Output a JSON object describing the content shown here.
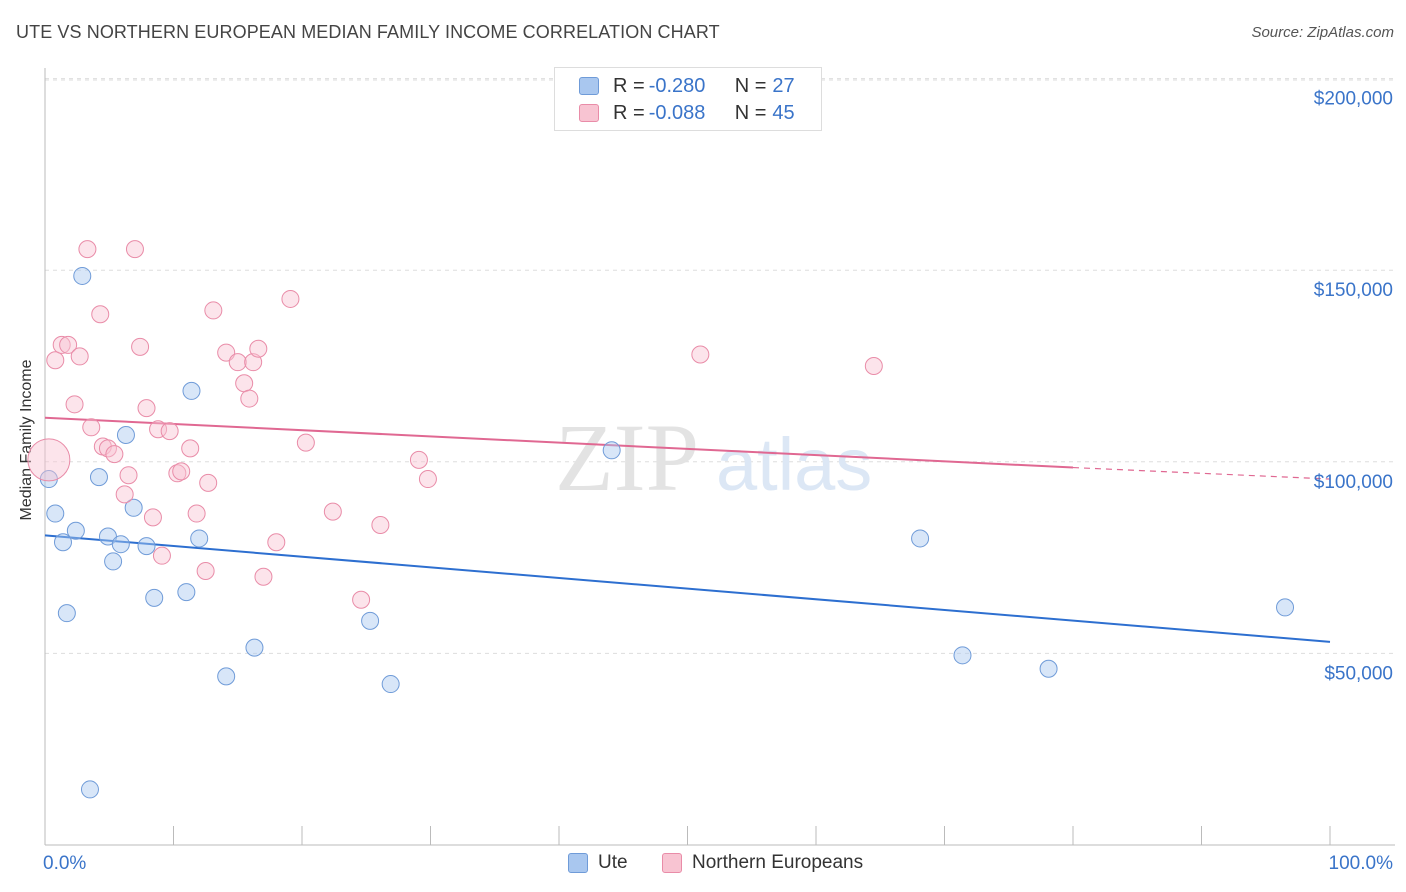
{
  "title": "UTE VS NORTHERN EUROPEAN MEDIAN FAMILY INCOME CORRELATION CHART",
  "source": "Source: ZipAtlas.com",
  "watermark": {
    "zip": "ZIP",
    "atlas": "atlas"
  },
  "legend_top": [
    {
      "series": "Ute",
      "r_key": "R =",
      "r_value": "-0.280",
      "n_key": "N =",
      "n_value": "27",
      "color": "#a9c7ef",
      "border": "#6f9bd8"
    },
    {
      "series": "Northern Europeans",
      "r_key": "R =",
      "r_value": "-0.088",
      "n_key": "N =",
      "n_value": "45",
      "color": "#f8c4d2",
      "border": "#e98ca8"
    }
  ],
  "legend_bottom": [
    {
      "label": "Ute",
      "color": "#a9c7ef",
      "border": "#6f9bd8"
    },
    {
      "label": "Northern Europeans",
      "color": "#f8c4d2",
      "border": "#e98ca8"
    }
  ],
  "colors": {
    "ute_fill": "rgba(169,199,239,0.45)",
    "ute_stroke": "#6f9bd8",
    "ute_line": "#2d6fd0",
    "ne_fill": "rgba(248,196,210,0.45)",
    "ne_stroke": "#e98ca8",
    "ne_line": "#e06892",
    "axis_label": "#3a74c9",
    "grid": "#dddddd"
  },
  "chart_data": {
    "type": "scatter",
    "title": "UTE VS NORTHERN EUROPEAN MEDIAN FAMILY INCOME CORRELATION CHART",
    "xlabel": "",
    "ylabel": "Median Family Income",
    "xlim": [
      0,
      100
    ],
    "ylim": [
      0,
      210000
    ],
    "x_tick_labels": [
      {
        "value": 0,
        "label": "0.0%"
      },
      {
        "value": 100,
        "label": "100.0%"
      }
    ],
    "x_minor_ticks": [
      0,
      10,
      20,
      30,
      40,
      50,
      60,
      70,
      80,
      90,
      100
    ],
    "y_ticks": [
      {
        "value": 50000,
        "label": "$50,000"
      },
      {
        "value": 100000,
        "label": "$100,000"
      },
      {
        "value": 150000,
        "label": "$150,000"
      },
      {
        "value": 200000,
        "label": "$200,000"
      }
    ],
    "grid": true,
    "series": [
      {
        "name": "Ute",
        "points": [
          {
            "x": 0.3,
            "y": 95500
          },
          {
            "x": 0.8,
            "y": 86500
          },
          {
            "x": 1.4,
            "y": 79000
          },
          {
            "x": 1.7,
            "y": 60500
          },
          {
            "x": 2.4,
            "y": 82000
          },
          {
            "x": 2.9,
            "y": 148500
          },
          {
            "x": 3.5,
            "y": 14500
          },
          {
            "x": 4.2,
            "y": 96000
          },
          {
            "x": 4.9,
            "y": 80500
          },
          {
            "x": 5.3,
            "y": 74000
          },
          {
            "x": 5.9,
            "y": 78500
          },
          {
            "x": 6.3,
            "y": 107000
          },
          {
            "x": 6.9,
            "y": 88000
          },
          {
            "x": 7.9,
            "y": 78000
          },
          {
            "x": 8.5,
            "y": 64500
          },
          {
            "x": 11.0,
            "y": 66000
          },
          {
            "x": 11.4,
            "y": 118500
          },
          {
            "x": 12.0,
            "y": 80000
          },
          {
            "x": 14.1,
            "y": 44000
          },
          {
            "x": 16.3,
            "y": 51500
          },
          {
            "x": 25.3,
            "y": 58500
          },
          {
            "x": 26.9,
            "y": 42000
          },
          {
            "x": 44.1,
            "y": 103000
          },
          {
            "x": 68.1,
            "y": 80000
          },
          {
            "x": 71.4,
            "y": 49500
          },
          {
            "x": 78.1,
            "y": 46000
          },
          {
            "x": 96.5,
            "y": 62000
          }
        ],
        "trendline": {
          "x": [
            0,
            100
          ],
          "y": [
            80800,
            53000
          ]
        }
      },
      {
        "name": "Northern Europeans",
        "points": [
          {
            "x": 0.3,
            "y": 100500,
            "large": true
          },
          {
            "x": 0.8,
            "y": 126500
          },
          {
            "x": 1.3,
            "y": 130500
          },
          {
            "x": 1.8,
            "y": 130500
          },
          {
            "x": 2.3,
            "y": 115000
          },
          {
            "x": 2.7,
            "y": 127500
          },
          {
            "x": 3.3,
            "y": 155500
          },
          {
            "x": 3.6,
            "y": 109000
          },
          {
            "x": 4.3,
            "y": 138500
          },
          {
            "x": 4.5,
            "y": 104000
          },
          {
            "x": 4.9,
            "y": 103500
          },
          {
            "x": 5.4,
            "y": 102000
          },
          {
            "x": 6.2,
            "y": 91500
          },
          {
            "x": 6.5,
            "y": 96500
          },
          {
            "x": 7.0,
            "y": 155500
          },
          {
            "x": 7.4,
            "y": 130000
          },
          {
            "x": 7.9,
            "y": 114000
          },
          {
            "x": 8.4,
            "y": 85500
          },
          {
            "x": 8.8,
            "y": 108500
          },
          {
            "x": 9.1,
            "y": 75500
          },
          {
            "x": 9.7,
            "y": 108000
          },
          {
            "x": 10.3,
            "y": 97000
          },
          {
            "x": 10.6,
            "y": 97500
          },
          {
            "x": 11.3,
            "y": 103500
          },
          {
            "x": 11.8,
            "y": 86500
          },
          {
            "x": 12.5,
            "y": 71500
          },
          {
            "x": 12.7,
            "y": 94500
          },
          {
            "x": 13.1,
            "y": 139500
          },
          {
            "x": 14.1,
            "y": 128500
          },
          {
            "x": 15.0,
            "y": 126000
          },
          {
            "x": 15.5,
            "y": 120500
          },
          {
            "x": 15.9,
            "y": 116500
          },
          {
            "x": 16.2,
            "y": 126000
          },
          {
            "x": 16.6,
            "y": 129500
          },
          {
            "x": 17.0,
            "y": 70000
          },
          {
            "x": 18.0,
            "y": 79000
          },
          {
            "x": 19.1,
            "y": 142500
          },
          {
            "x": 20.3,
            "y": 105000
          },
          {
            "x": 22.4,
            "y": 87000
          },
          {
            "x": 24.6,
            "y": 64000
          },
          {
            "x": 26.1,
            "y": 83500
          },
          {
            "x": 29.1,
            "y": 100500
          },
          {
            "x": 29.8,
            "y": 95500
          },
          {
            "x": 51.0,
            "y": 128000
          },
          {
            "x": 64.5,
            "y": 125000
          }
        ],
        "trendline": {
          "x": [
            0,
            80
          ],
          "y": [
            111500,
            98500
          ]
        },
        "trendline_dashed": {
          "x": [
            80,
            100
          ],
          "y": [
            98500,
            95500
          ]
        }
      }
    ]
  }
}
